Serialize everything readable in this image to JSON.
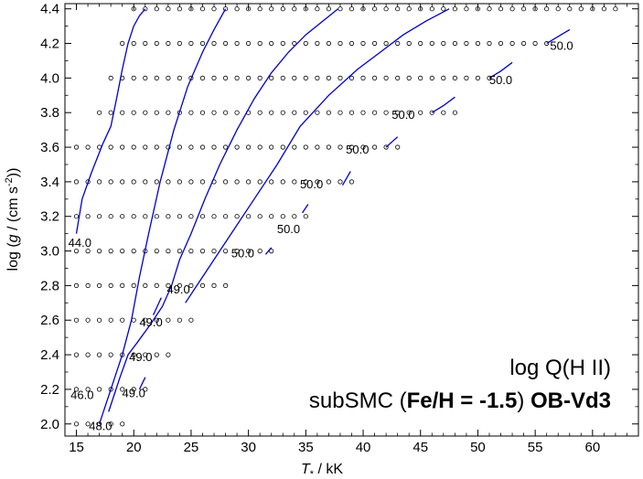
{
  "chart_data": {
    "type": "line",
    "title_line1": "log Q(H II)",
    "title_line2_prefix": "subSMC (",
    "title_line2_bold": "Fe/H = -1.5",
    "title_line2_mid": ") ",
    "title_line2_bold2": "OB-Vd3",
    "xlabel_symbol": "T",
    "xlabel_sub": "*",
    "xlabel_unit": " / kK",
    "ylabel_prefix": "log (",
    "ylabel_symbol": "g",
    "ylabel_unit": " / (cm s",
    "ylabel_exp": "-2",
    "ylabel_suffix": "))",
    "xlim": [
      14,
      64
    ],
    "ylim": [
      1.93,
      4.43
    ],
    "xticks": [
      15,
      20,
      25,
      30,
      35,
      40,
      45,
      50,
      55,
      60
    ],
    "xtick_labels": [
      "15",
      "20",
      "25",
      "30",
      "35",
      "40",
      "45",
      "50",
      "55",
      "60"
    ],
    "yticks": [
      2.0,
      2.2,
      2.4,
      2.6,
      2.8,
      3.0,
      3.2,
      3.4,
      3.6,
      3.8,
      4.0,
      4.2,
      4.4
    ],
    "ytick_labels": [
      "2.0",
      "2.2",
      "2.4",
      "2.6",
      "2.8",
      "3.0",
      "3.2",
      "3.4",
      "3.6",
      "3.8",
      "4.0",
      "4.2",
      "4.4"
    ],
    "grid": false,
    "line_color": "#0000cc",
    "marker_color": "#000000",
    "model_grid": [
      {
        "logg": 4.4,
        "tmin": 20,
        "tmax": 62
      },
      {
        "logg": 4.2,
        "tmin": 19,
        "tmax": 56
      },
      {
        "logg": 4.0,
        "tmin": 18,
        "tmax": 51
      },
      {
        "logg": 3.8,
        "tmin": 17,
        "tmax": 48
      },
      {
        "logg": 3.6,
        "tmin": 15,
        "tmax": 43
      },
      {
        "logg": 3.4,
        "tmin": 15,
        "tmax": 39
      },
      {
        "logg": 3.2,
        "tmin": 15,
        "tmax": 35
      },
      {
        "logg": 3.0,
        "tmin": 15,
        "tmax": 32
      },
      {
        "logg": 2.8,
        "tmin": 15,
        "tmax": 28
      },
      {
        "logg": 2.6,
        "tmin": 15,
        "tmax": 25
      },
      {
        "logg": 2.4,
        "tmin": 15,
        "tmax": 23
      },
      {
        "logg": 2.2,
        "tmin": 15,
        "tmax": 21
      },
      {
        "logg": 2.0,
        "tmin": 15,
        "tmax": 19
      }
    ],
    "contours": [
      {
        "x": [
          15.0,
          15.5,
          16.3,
          17.3,
          18.0,
          18.5,
          19.0,
          19.5,
          20.0,
          20.5,
          21.0
        ],
        "y": [
          3.1,
          3.3,
          3.45,
          3.62,
          3.72,
          3.88,
          4.05,
          4.2,
          4.3,
          4.36,
          4.4
        ]
      },
      {
        "x": [
          17.0,
          18.0,
          19.0,
          19.8,
          20.5,
          21.3,
          22.3,
          23.5,
          24.7,
          26.0,
          27.0,
          28.0
        ],
        "y": [
          2.0,
          2.2,
          2.4,
          2.6,
          2.85,
          3.1,
          3.4,
          3.7,
          3.95,
          4.15,
          4.28,
          4.4
        ]
      },
      {
        "x": [
          17.8,
          18.8,
          19.5,
          20.3,
          21.5,
          22.5,
          23.3,
          24.0,
          25.0,
          26.2,
          27.5,
          29.0,
          30.5,
          32.0,
          33.5,
          35.0,
          36.5,
          37.8
        ],
        "y": [
          2.07,
          2.27,
          2.4,
          2.47,
          2.58,
          2.68,
          2.8,
          2.95,
          3.1,
          3.3,
          3.5,
          3.7,
          3.88,
          4.03,
          4.15,
          4.25,
          4.33,
          4.4
        ]
      },
      {
        "x": [
          24.5,
          25.5,
          27.0,
          28.5,
          30.5,
          32.5,
          34.5,
          37.0,
          39.5,
          41.5,
          43.5,
          45.5,
          47.5
        ],
        "y": [
          2.7,
          2.8,
          2.95,
          3.1,
          3.3,
          3.5,
          3.72,
          3.9,
          4.05,
          4.15,
          4.25,
          4.33,
          4.4
        ]
      },
      {
        "x": [
          21.7,
          22.4
        ],
        "y": [
          2.63,
          2.73
        ]
      },
      {
        "x": [
          20.5,
          21.0
        ],
        "y": [
          2.2,
          2.27
        ]
      },
      {
        "x": [
          31.5,
          32.0
        ],
        "y": [
          2.98,
          3.02
        ]
      },
      {
        "x": [
          34.7,
          35.2
        ],
        "y": [
          3.22,
          3.27
        ]
      },
      {
        "x": [
          38.2,
          38.9
        ],
        "y": [
          3.38,
          3.46
        ]
      },
      {
        "x": [
          42.0,
          43.0
        ],
        "y": [
          3.6,
          3.66
        ]
      },
      {
        "x": [
          46.0,
          47.0,
          48.0
        ],
        "y": [
          3.8,
          3.84,
          3.89
        ]
      },
      {
        "x": [
          51.0,
          52.0,
          53.0
        ],
        "y": [
          4.0,
          4.04,
          4.09
        ]
      },
      {
        "x": [
          56.0,
          57.0,
          58.0
        ],
        "y": [
          4.2,
          4.24,
          4.28
        ]
      }
    ],
    "contour_labels": [
      {
        "text": "44.0",
        "x": 15.3,
        "y": 3.05
      },
      {
        "text": "46.0",
        "x": 15.5,
        "y": 2.17
      },
      {
        "text": "48.0",
        "x": 17.1,
        "y": 1.99
      },
      {
        "text": "49.0",
        "x": 20.0,
        "y": 2.18
      },
      {
        "text": "49.0",
        "x": 20.6,
        "y": 2.39
      },
      {
        "text": "49.0",
        "x": 21.5,
        "y": 2.59
      },
      {
        "text": "49.0",
        "x": 23.9,
        "y": 2.78
      },
      {
        "text": "50.0",
        "x": 29.5,
        "y": 2.99
      },
      {
        "text": "50.0",
        "x": 33.5,
        "y": 3.13
      },
      {
        "text": "50.0",
        "x": 35.5,
        "y": 3.39
      },
      {
        "text": "50.0",
        "x": 39.5,
        "y": 3.59
      },
      {
        "text": "50.0",
        "x": 43.5,
        "y": 3.79
      },
      {
        "text": "50.0",
        "x": 52.0,
        "y": 3.99
      },
      {
        "text": "50.0",
        "x": 57.3,
        "y": 4.19
      }
    ]
  }
}
